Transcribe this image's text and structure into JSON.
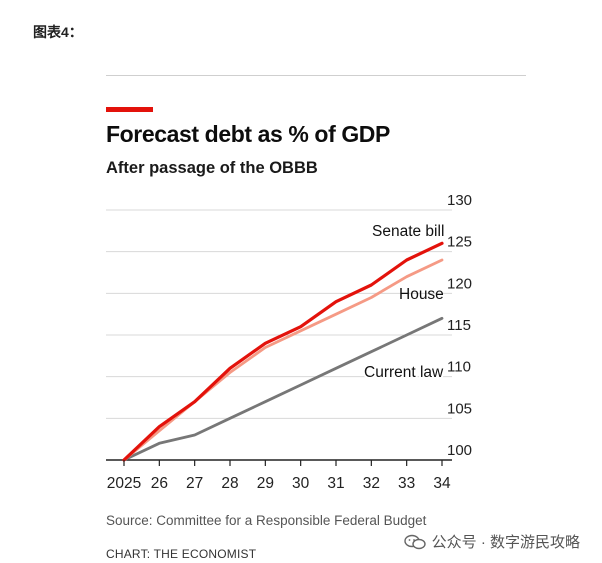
{
  "header": {
    "figure_label": "图表4："
  },
  "chart_data": {
    "type": "line",
    "title": "Forecast debt as % of GDP",
    "subtitle": "After passage of the OBBB",
    "categories": [
      "2025",
      "26",
      "27",
      "28",
      "29",
      "30",
      "31",
      "32",
      "33",
      "34"
    ],
    "x": [
      2025,
      2026,
      2027,
      2028,
      2029,
      2030,
      2031,
      2032,
      2033,
      2034
    ],
    "ylim": [
      100,
      130
    ],
    "yticks": [
      100,
      105,
      110,
      115,
      120,
      125,
      130
    ],
    "grid": true,
    "series": [
      {
        "name": "Senate bill",
        "color": "#e3120b",
        "values": [
          100,
          104,
          107,
          111,
          114,
          116,
          119,
          121,
          124,
          126
        ]
      },
      {
        "name": "House",
        "color": "#f59a85",
        "values": [
          100,
          103.5,
          107,
          110.5,
          113.5,
          115.5,
          117.5,
          119.5,
          122,
          124
        ]
      },
      {
        "name": "Current law",
        "color": "#777777",
        "values": [
          100,
          102,
          103,
          105,
          107,
          109,
          111,
          113,
          115,
          117
        ]
      }
    ],
    "source": "Source: Committee for a Responsible Federal Budget"
  },
  "footer": {
    "credit": "CHART: THE ECONOMIST",
    "watermark": "公众号 · 数字游民攻略"
  }
}
